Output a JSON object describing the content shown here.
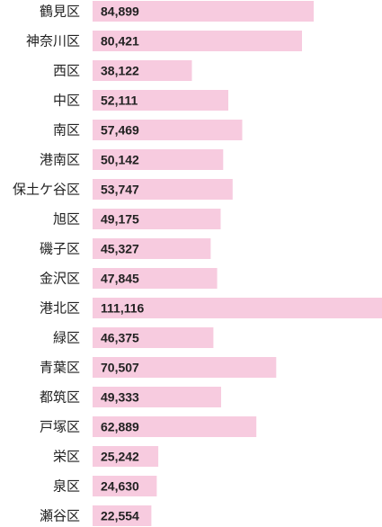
{
  "chart_data": {
    "type": "bar",
    "orientation": "horizontal",
    "title": "",
    "xlabel": "",
    "ylabel": "",
    "grid": false,
    "legend": "none",
    "xlim": [
      0,
      111116
    ],
    "bar_color": "#f7cbdf",
    "text_color": "#222222",
    "categories": [
      "鶴見区",
      "神奈川区",
      "西区",
      "中区",
      "南区",
      "港南区",
      "保土ケ谷区",
      "旭区",
      "磯子区",
      "金沢区",
      "港北区",
      "緑区",
      "青葉区",
      "都筑区",
      "戸塚区",
      "栄区",
      "泉区",
      "瀬谷区"
    ],
    "values": [
      84899,
      80421,
      38122,
      52111,
      57469,
      50142,
      53747,
      49175,
      45327,
      47845,
      111116,
      46375,
      70507,
      49333,
      62889,
      25242,
      24630,
      22554
    ],
    "value_labels": [
      "84,899",
      "80,421",
      "38,122",
      "52,111",
      "57,469",
      "50,142",
      "53,747",
      "49,175",
      "45,327",
      "47,845",
      "111,116",
      "46,375",
      "70,507",
      "49,333",
      "62,889",
      "25,242",
      "24,630",
      "22,554"
    ]
  }
}
